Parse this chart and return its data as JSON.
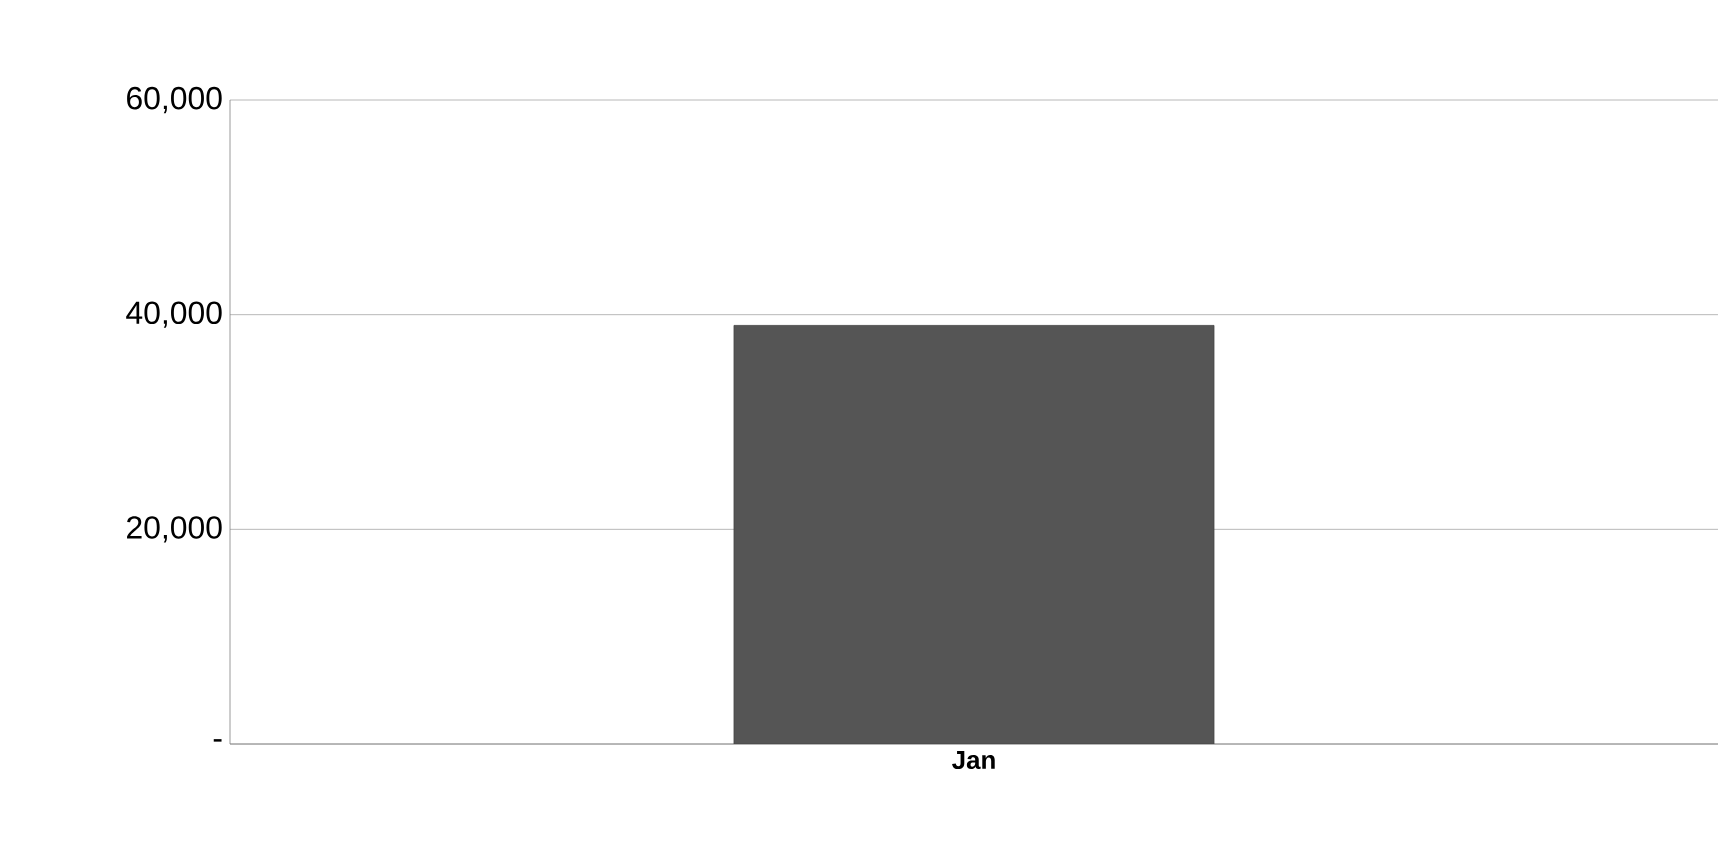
{
  "chart_data": {
    "type": "bar",
    "categories": [
      "Jan"
    ],
    "values": [
      39000
    ],
    "color": "#555555",
    "ylim": [
      0,
      60000
    ],
    "yticks": [
      {
        "value": 0,
        "label": "-"
      },
      {
        "value": 20000,
        "label": "20,000"
      },
      {
        "value": 40000,
        "label": "40,000"
      },
      {
        "value": 60000,
        "label": "60,000"
      }
    ],
    "grid": "y"
  }
}
